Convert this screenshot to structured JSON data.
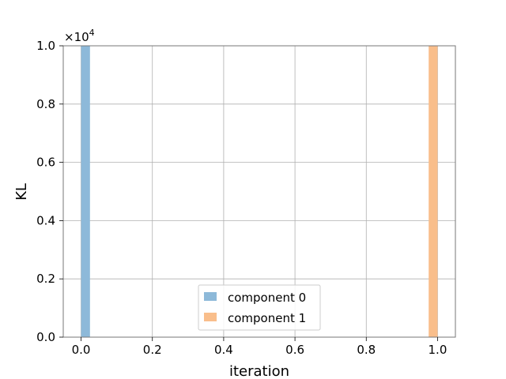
{
  "chart_data": {
    "type": "histogram",
    "xlabel": "iteration",
    "ylabel": "KL",
    "y_multiplier_label": "×10",
    "y_multiplier_exponent": "4",
    "xlim": [
      -0.05,
      1.05
    ],
    "ylim": [
      0,
      1.0
    ],
    "x_ticks": [
      "0.0",
      "0.2",
      "0.4",
      "0.6",
      "0.8",
      "1.0"
    ],
    "x_tick_values": [
      0.0,
      0.2,
      0.4,
      0.6,
      0.8,
      1.0
    ],
    "y_ticks": [
      "0.0",
      "0.2",
      "0.4",
      "0.6",
      "0.8",
      "1.0"
    ],
    "y_tick_values": [
      0.0,
      0.2,
      0.4,
      0.6,
      0.8,
      1.0
    ],
    "grid": true,
    "legend_position": "lower center",
    "series": [
      {
        "name": "component 0",
        "color": "#8db9d9",
        "bins": [
          {
            "x0": 0.0,
            "x1": 0.025,
            "value": 1.0
          }
        ]
      },
      {
        "name": "component 1",
        "color": "#f9be8b",
        "bins": [
          {
            "x0": 0.975,
            "x1": 1.0,
            "value": 1.0
          }
        ]
      }
    ]
  }
}
